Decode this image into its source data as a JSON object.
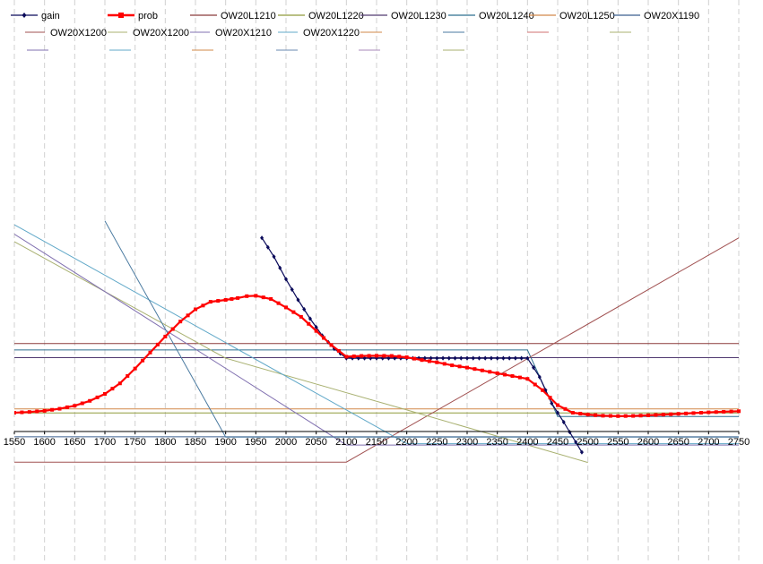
{
  "chart_data": {
    "type": "line",
    "xlim": [
      1550,
      2750
    ],
    "x_ticks": [
      "1550",
      "1600",
      "1650",
      "1700",
      "1750",
      "1800",
      "1850",
      "1900",
      "1950",
      "2000",
      "2050",
      "2100",
      "2150",
      "2200",
      "2250",
      "2300",
      "2350",
      "2400",
      "2450",
      "2500",
      "2550",
      "2600",
      "2650",
      "2700",
      "2750"
    ],
    "grid": "vertical dashed",
    "legend_position": "top",
    "series": [
      {
        "name": "gain",
        "color": "#0a0a5a",
        "marker": "diamond",
        "points": [
          [
            1960,
            1030
          ],
          [
            1980,
            930
          ],
          [
            2000,
            810
          ],
          [
            2020,
            700
          ],
          [
            2040,
            600
          ],
          [
            2060,
            510
          ],
          [
            2080,
            440
          ],
          [
            2100,
            390
          ],
          [
            2150,
            390
          ],
          [
            2200,
            390
          ],
          [
            2250,
            390
          ],
          [
            2300,
            390
          ],
          [
            2350,
            390
          ],
          [
            2400,
            390
          ],
          [
            2420,
            290
          ],
          [
            2440,
            150
          ],
          [
            2460,
            50
          ],
          [
            2490,
            -110
          ]
        ]
      },
      {
        "name": "prob",
        "color": "#ff0000",
        "marker": "square",
        "points": [
          [
            1550,
            100
          ],
          [
            1575,
            104
          ],
          [
            1600,
            110
          ],
          [
            1625,
            121
          ],
          [
            1650,
            137
          ],
          [
            1675,
            163
          ],
          [
            1700,
            200
          ],
          [
            1725,
            256
          ],
          [
            1750,
            335
          ],
          [
            1775,
            420
          ],
          [
            1800,
            505
          ],
          [
            1825,
            585
          ],
          [
            1850,
            650
          ],
          [
            1875,
            690
          ],
          [
            1900,
            700
          ],
          [
            1920,
            710
          ],
          [
            1935,
            720
          ],
          [
            1950,
            722
          ],
          [
            1975,
            705
          ],
          [
            2000,
            660
          ],
          [
            2025,
            610
          ],
          [
            2050,
            535
          ],
          [
            2075,
            460
          ],
          [
            2100,
            398
          ],
          [
            2125,
            402
          ],
          [
            2150,
            403
          ],
          [
            2175,
            402
          ],
          [
            2200,
            395
          ],
          [
            2225,
            380
          ],
          [
            2250,
            368
          ],
          [
            2275,
            352
          ],
          [
            2300,
            340
          ],
          [
            2325,
            325
          ],
          [
            2350,
            310
          ],
          [
            2375,
            295
          ],
          [
            2400,
            280
          ],
          [
            2425,
            220
          ],
          [
            2450,
            140
          ],
          [
            2475,
            100
          ],
          [
            2500,
            90
          ],
          [
            2525,
            84
          ],
          [
            2550,
            82
          ],
          [
            2575,
            83
          ],
          [
            2600,
            86
          ],
          [
            2625,
            90
          ],
          [
            2650,
            94
          ],
          [
            2675,
            98
          ],
          [
            2700,
            102
          ],
          [
            2725,
            105
          ],
          [
            2750,
            108
          ]
        ]
      },
      {
        "name": "OW20L1210",
        "color": "#8b3a3a",
        "points": [
          [
            1550,
            468
          ],
          [
            2750,
            468
          ]
        ]
      },
      {
        "name": "OW20L1220",
        "color": "#8f9a3a",
        "points": [
          [
            1550,
            99
          ],
          [
            2750,
            99
          ]
        ]
      },
      {
        "name": "OW20L1230",
        "color": "#503a70",
        "points": [
          [
            1550,
            393
          ],
          [
            2750,
            393
          ]
        ]
      },
      {
        "name": "OW20L1240",
        "color": "#2f6f8f",
        "points": [
          [
            1550,
            434
          ],
          [
            2400,
            434
          ],
          [
            2450,
            80
          ],
          [
            2750,
            80
          ]
        ]
      },
      {
        "name": "OW20L1250",
        "color": "#d2894a",
        "points": [
          [
            1550,
            120
          ],
          [
            2750,
            120
          ]
        ]
      },
      {
        "name": "OW20X1190",
        "color": "#3a5f8f",
        "points": [
          [
            1550,
            -28
          ],
          [
            2750,
            -28
          ]
        ]
      },
      {
        "name": "OW20X1200",
        "color": "#a05050",
        "points": [
          [
            1550,
            -163
          ],
          [
            2100,
            -163
          ],
          [
            2750,
            1030
          ]
        ]
      },
      {
        "name": "OW20X1200",
        "color": "#a8b070",
        "points": [
          [
            1550,
            1010
          ],
          [
            1900,
            390
          ],
          [
            2200,
            115
          ],
          [
            2500,
            -165
          ]
        ]
      },
      {
        "name": "OW20X1210",
        "color": "#8070b0",
        "points": [
          [
            1550,
            1050
          ],
          [
            2100,
            -72
          ],
          [
            2750,
            -72
          ]
        ]
      },
      {
        "name": "OW20X1220",
        "color": "#60a8c8",
        "points": [
          [
            1550,
            1100
          ],
          [
            2200,
            -65
          ],
          [
            2750,
            -65
          ]
        ]
      },
      {
        "name": "",
        "color": "#4a7aa0",
        "points": [
          [
            1700,
            1120
          ],
          [
            1900,
            -30
          ],
          [
            2750,
            -30
          ]
        ]
      }
    ]
  },
  "legend": {
    "row1": [
      "gain",
      "prob",
      "OW20L1210",
      "OW20L1220",
      "OW20L1230",
      "OW20L1240",
      "OW20L1250",
      "OW20X1190"
    ],
    "row2": [
      "OW20X1200",
      "OW20X1200",
      "OW20X1210",
      "OW20X1220"
    ],
    "empty_swatches_row2": [
      "#d2894a",
      "#4a7aa0",
      "#d07070",
      "#a8b070"
    ],
    "empty_swatches_row3": [
      "#8070b0",
      "#60a8c8",
      "#d2894a",
      "#6a8ab0",
      "#a88ab8",
      "#a8b070"
    ]
  }
}
